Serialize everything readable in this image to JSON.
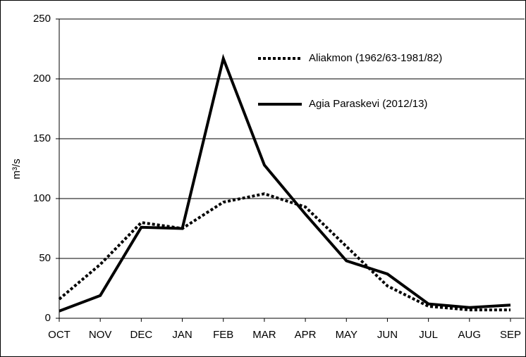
{
  "chart_data": {
    "type": "line",
    "ylabel": "m³/s",
    "categories": [
      "OCT",
      "NOV",
      "DEC",
      "JAN",
      "FEB",
      "MAR",
      "APR",
      "MAY",
      "JUN",
      "JUL",
      "AUG",
      "SEP"
    ],
    "series": [
      {
        "name": "Aliakmon (1962/63-1981/82)",
        "color": "#000000",
        "style": "dotted",
        "values": [
          16,
          45,
          80,
          75,
          97,
          104,
          93,
          60,
          27,
          10,
          7,
          7
        ]
      },
      {
        "name": "Agia Paraskevi (2012/13)",
        "color": "#000000",
        "style": "solid",
        "values": [
          6,
          19,
          76,
          75,
          217,
          128,
          87,
          48,
          37,
          12,
          9,
          11
        ]
      }
    ],
    "ylim": [
      0,
      250
    ],
    "yticks": [
      0,
      50,
      100,
      150,
      200,
      250
    ],
    "grid": true
  }
}
